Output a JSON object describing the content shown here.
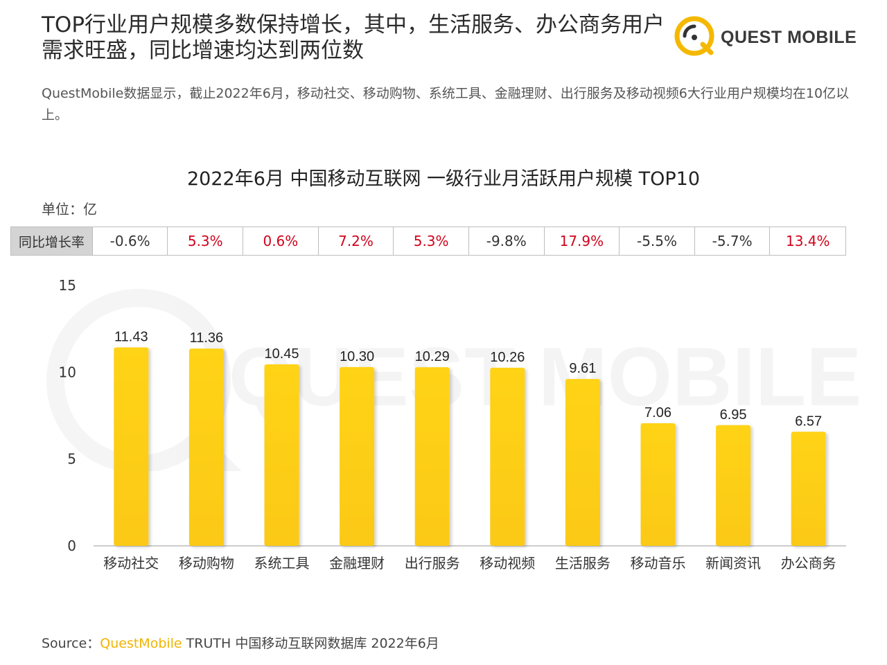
{
  "header": {
    "headline": "TOP行业用户规模多数保持增长，其中，生活服务、办公商务用户需求旺盛，同比增速均达到两位数",
    "subtitle": "QuestMobile数据显示，截止2022年6月，移动社交、移动购物、系统工具、金融理财、出行服务及移动视频6大行业用户规模均在10亿以上。"
  },
  "logo": {
    "text": "QUEST MOBILE",
    "accent": "#f5b800"
  },
  "watermark": {
    "text": "QUEST MOBILE"
  },
  "yoy": {
    "label": "同比增长率",
    "values": [
      "-0.6%",
      "5.3%",
      "0.6%",
      "7.2%",
      "5.3%",
      "-9.8%",
      "17.9%",
      "-5.5%",
      "-5.7%",
      "13.4%"
    ]
  },
  "chart_data": {
    "type": "bar",
    "title": "2022年6月 中国移动互联网 一级行业月活跃用户规模 TOP10",
    "unit_label": "单位：亿",
    "categories": [
      "移动社交",
      "移动购物",
      "系统工具",
      "金融理财",
      "出行服务",
      "移动视频",
      "生活服务",
      "移动音乐",
      "新闻资讯",
      "办公商务"
    ],
    "values": [
      11.43,
      11.36,
      10.45,
      10.3,
      10.29,
      10.26,
      9.61,
      7.06,
      6.95,
      6.57
    ],
    "value_labels": [
      "11.43",
      "11.36",
      "10.45",
      "10.30",
      "10.29",
      "10.26",
      "9.61",
      "7.06",
      "6.95",
      "6.57"
    ],
    "ylim": [
      0,
      15
    ],
    "yticks": [
      0,
      5,
      10,
      15
    ],
    "xlabel": "",
    "ylabel": "",
    "grid": false,
    "bar_color": "#fbc917",
    "bar_color_top": "#ffd319"
  },
  "footer": {
    "source_prefix": "Source：",
    "brand": "QuestMobile",
    "rest": " TRUTH 中国移动互联网数据库 2022年6月"
  }
}
